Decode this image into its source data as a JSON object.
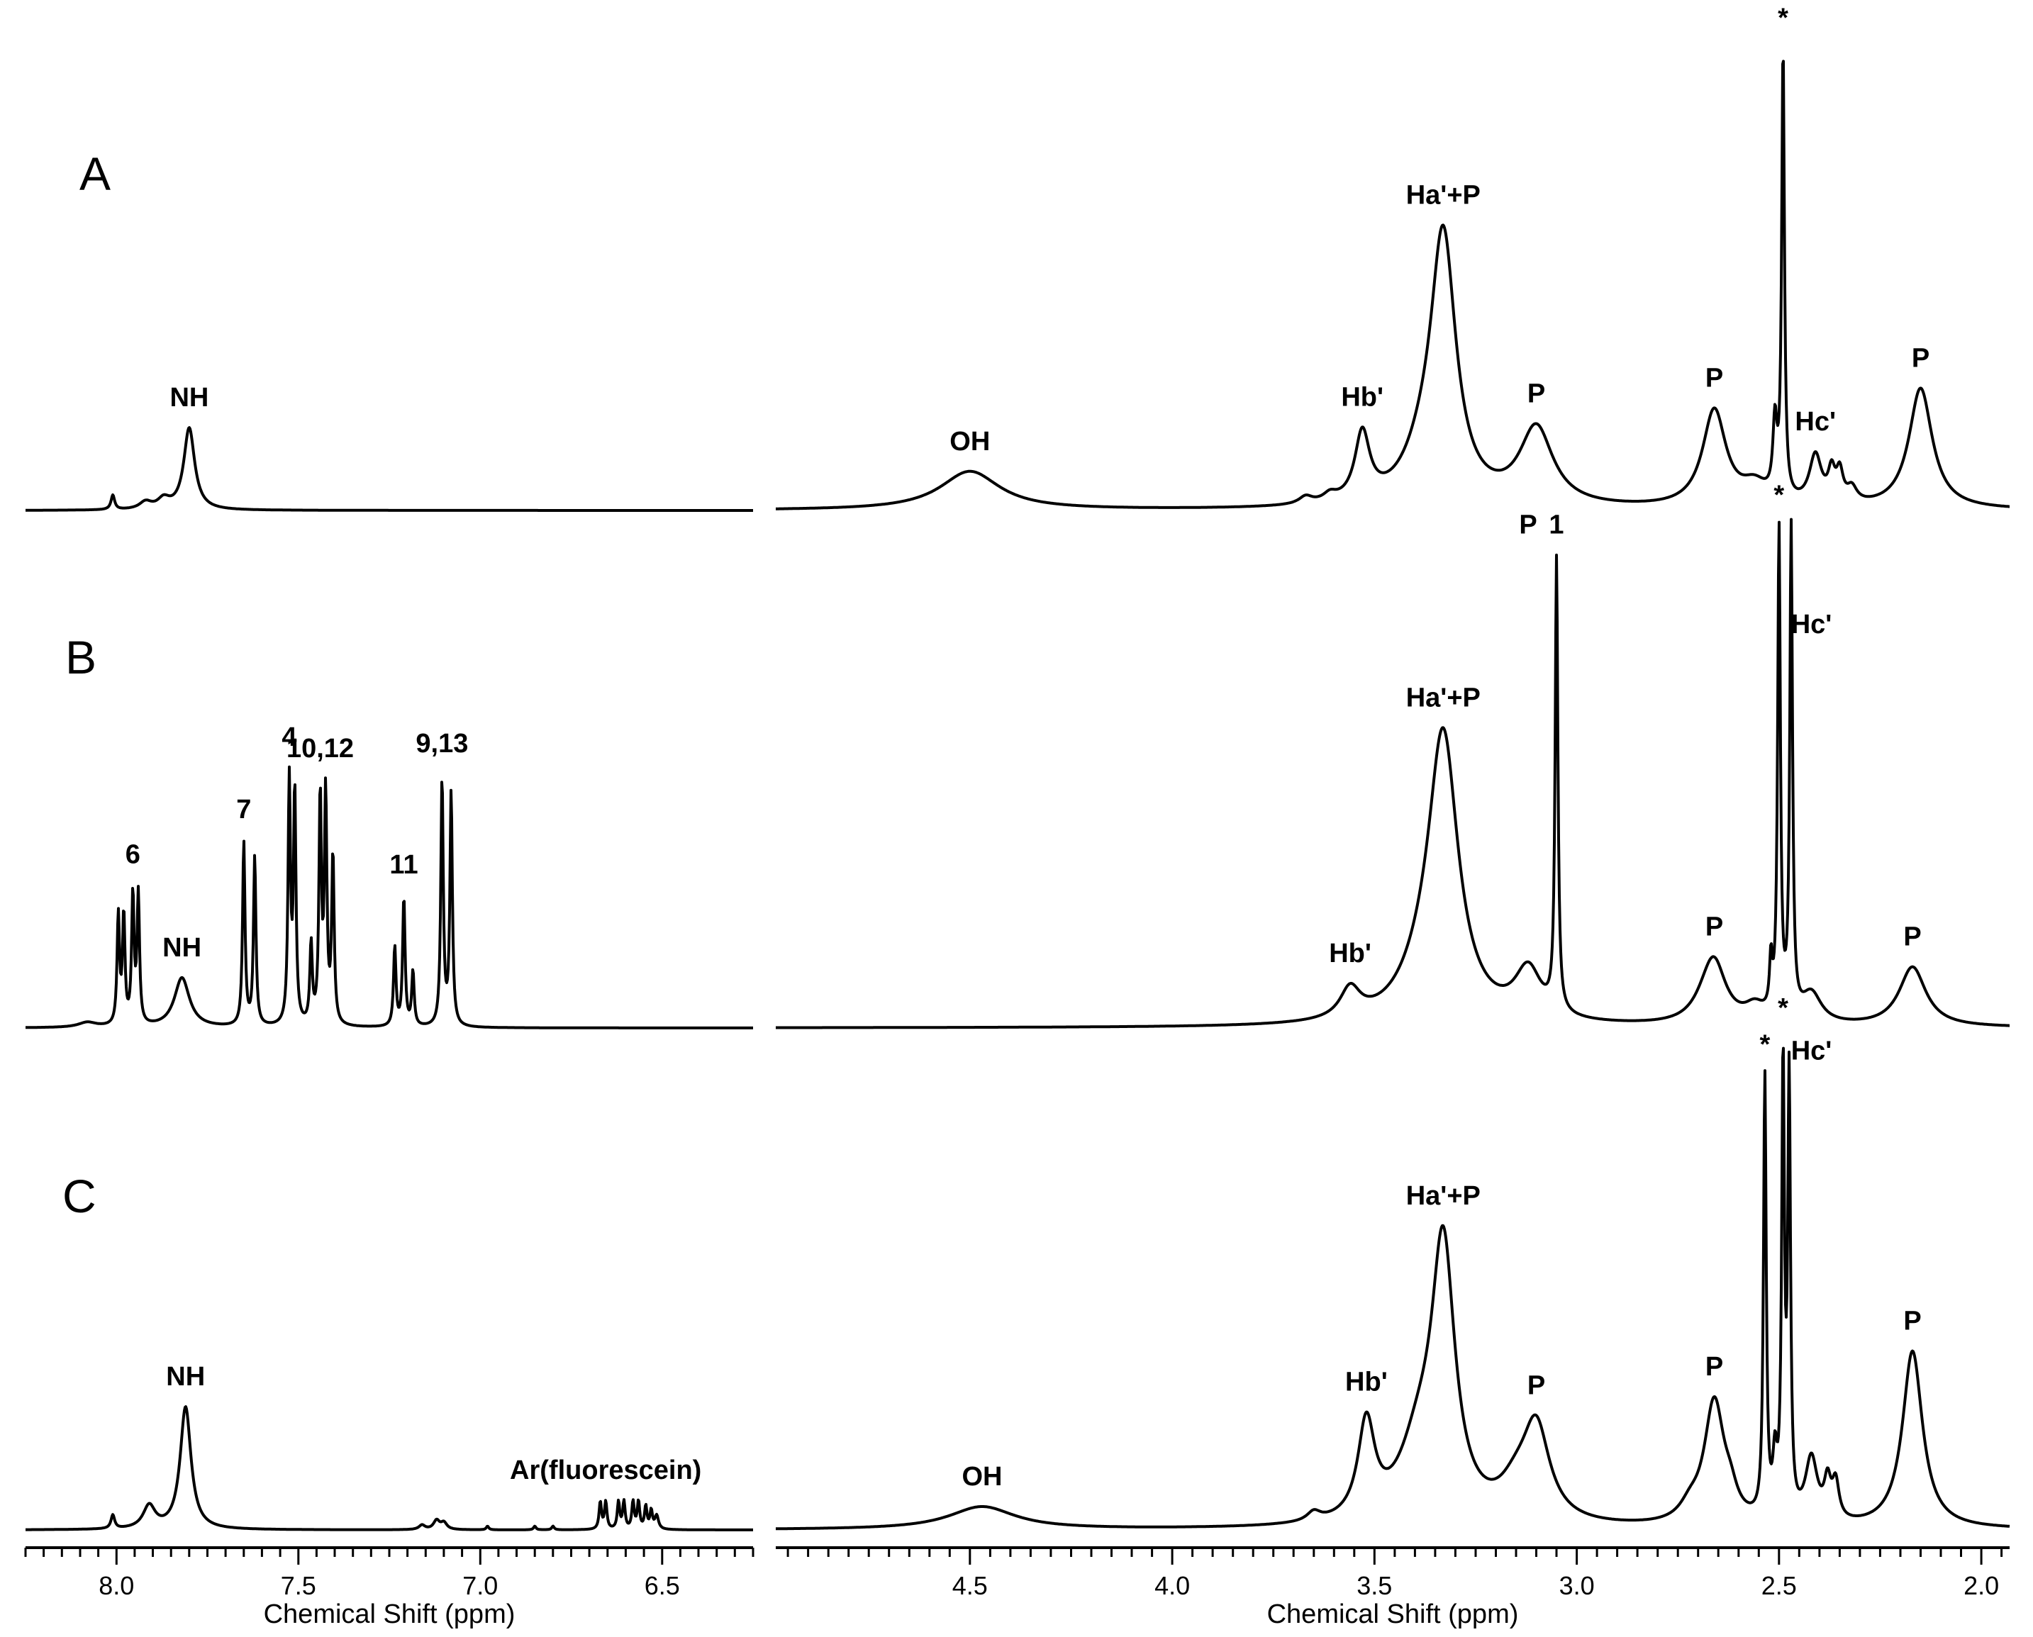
{
  "chart_data": {
    "type": "line",
    "title": "",
    "x_axes": [
      {
        "name": "left",
        "xlabel": "Chemical Shift (ppm)",
        "xlim": [
          8.25,
          6.25
        ],
        "reversed": true,
        "major_ticks": [
          8.0,
          7.5,
          7.0,
          6.5
        ],
        "tick_labels": [
          "8.0",
          "7.5",
          "7.0",
          "6.5"
        ],
        "minor_step": 0.05
      },
      {
        "name": "right",
        "xlabel": "Chemical Shift (ppm)",
        "xlim": [
          4.98,
          1.93
        ],
        "reversed": true,
        "major_ticks": [
          4.5,
          4.0,
          3.5,
          3.0,
          2.5,
          2.0
        ],
        "tick_labels": [
          "4.5",
          "4.0",
          "3.5",
          "3.0",
          "2.5",
          "2.0"
        ],
        "minor_step": 0.05
      }
    ],
    "y_axis": {
      "visible": false,
      "units": "relative intensity",
      "ylim": [
        0,
        1
      ]
    },
    "grid": false,
    "legend": "none",
    "spectra": [
      {
        "panel": "A",
        "peaks": [
          {
            "ppm": 8.01,
            "height": 0.03,
            "width": 0.006,
            "axis": "left"
          },
          {
            "ppm": 7.92,
            "height": 0.015,
            "width": 0.02,
            "axis": "left"
          },
          {
            "ppm": 7.87,
            "height": 0.02,
            "width": 0.02,
            "axis": "left"
          },
          {
            "ppm": 7.8,
            "height": 0.17,
            "width": 0.018,
            "axis": "left",
            "label": "NH"
          },
          {
            "ppm": 4.5,
            "height": 0.08,
            "width": 0.09,
            "axis": "right",
            "label": "OH"
          },
          {
            "ppm": 3.67,
            "height": 0.015,
            "width": 0.02,
            "axis": "right"
          },
          {
            "ppm": 3.61,
            "height": 0.015,
            "width": 0.02,
            "axis": "right"
          },
          {
            "ppm": 3.53,
            "height": 0.14,
            "width": 0.022,
            "axis": "right",
            "label": "Hb'"
          },
          {
            "ppm": 3.38,
            "height": 0.07,
            "width": 0.06,
            "axis": "right"
          },
          {
            "ppm": 3.33,
            "height": 0.54,
            "width": 0.038,
            "axis": "right",
            "label": "Ha'+P"
          },
          {
            "ppm": 3.1,
            "height": 0.16,
            "width": 0.05,
            "axis": "right",
            "label": "P"
          },
          {
            "ppm": 2.66,
            "height": 0.2,
            "width": 0.035,
            "axis": "right",
            "label": "P"
          },
          {
            "ppm": 2.56,
            "height": 0.04,
            "width": 0.04,
            "axis": "right"
          },
          {
            "ppm": 2.51,
            "height": 0.15,
            "width": 0.006,
            "axis": "right"
          },
          {
            "ppm": 2.49,
            "height": 0.93,
            "width": 0.004,
            "axis": "right",
            "label": "*"
          },
          {
            "ppm": 2.41,
            "height": 0.1,
            "width": 0.018,
            "axis": "right",
            "label": "Hc'"
          },
          {
            "ppm": 2.37,
            "height": 0.06,
            "width": 0.01,
            "axis": "right"
          },
          {
            "ppm": 2.35,
            "height": 0.06,
            "width": 0.01,
            "axis": "right"
          },
          {
            "ppm": 2.32,
            "height": 0.03,
            "width": 0.015,
            "axis": "right"
          },
          {
            "ppm": 2.15,
            "height": 0.25,
            "width": 0.035,
            "axis": "right",
            "label": "P"
          }
        ]
      },
      {
        "panel": "B",
        "peaks": [
          {
            "ppm": 8.08,
            "height": 0.01,
            "width": 0.03,
            "axis": "left"
          },
          {
            "ppm": 7.995,
            "height": 0.22,
            "width": 0.004,
            "axis": "left"
          },
          {
            "ppm": 7.98,
            "height": 0.22,
            "width": 0.004,
            "axis": "left"
          },
          {
            "ppm": 7.955,
            "height": 0.26,
            "width": 0.004,
            "axis": "left",
            "label": "6"
          },
          {
            "ppm": 7.94,
            "height": 0.26,
            "width": 0.004,
            "axis": "left"
          },
          {
            "ppm": 7.82,
            "height": 0.1,
            "width": 0.025,
            "axis": "left",
            "label": "NH"
          },
          {
            "ppm": 7.65,
            "height": 0.37,
            "width": 0.004,
            "axis": "left",
            "label": "7"
          },
          {
            "ppm": 7.62,
            "height": 0.34,
            "width": 0.004,
            "axis": "left"
          },
          {
            "ppm": 7.525,
            "height": 0.49,
            "width": 0.004,
            "axis": "left",
            "label": "4"
          },
          {
            "ppm": 7.51,
            "height": 0.47,
            "width": 0.004,
            "axis": "left"
          },
          {
            "ppm": 7.465,
            "height": 0.16,
            "width": 0.004,
            "axis": "left"
          },
          {
            "ppm": 7.44,
            "height": 0.46,
            "width": 0.004,
            "axis": "left",
            "label": "10,12"
          },
          {
            "ppm": 7.425,
            "height": 0.46,
            "width": 0.004,
            "axis": "left"
          },
          {
            "ppm": 7.405,
            "height": 0.34,
            "width": 0.004,
            "axis": "left"
          },
          {
            "ppm": 7.235,
            "height": 0.16,
            "width": 0.004,
            "axis": "left"
          },
          {
            "ppm": 7.21,
            "height": 0.26,
            "width": 0.004,
            "axis": "left",
            "label": "11"
          },
          {
            "ppm": 7.185,
            "height": 0.11,
            "width": 0.004,
            "axis": "left"
          },
          {
            "ppm": 7.105,
            "height": 0.5,
            "width": 0.004,
            "axis": "left",
            "label": "9,13"
          },
          {
            "ppm": 7.08,
            "height": 0.47,
            "width": 0.004,
            "axis": "left"
          },
          {
            "ppm": 3.56,
            "height": 0.06,
            "width": 0.03,
            "axis": "right",
            "label": "Hb'"
          },
          {
            "ppm": 3.38,
            "height": 0.06,
            "width": 0.07,
            "axis": "right"
          },
          {
            "ppm": 3.33,
            "height": 0.56,
            "width": 0.045,
            "axis": "right",
            "label": "Ha'+P"
          },
          {
            "ppm": 3.12,
            "height": 0.1,
            "width": 0.04,
            "axis": "right",
            "label": "P"
          },
          {
            "ppm": 3.05,
            "height": 0.91,
            "width": 0.004,
            "axis": "right",
            "label": "1"
          },
          {
            "ppm": 2.68,
            "height": 0.03,
            "width": 0.04,
            "axis": "right"
          },
          {
            "ppm": 2.66,
            "height": 0.11,
            "width": 0.035,
            "axis": "right",
            "label": "P"
          },
          {
            "ppm": 2.56,
            "height": 0.03,
            "width": 0.03,
            "axis": "right"
          },
          {
            "ppm": 2.52,
            "height": 0.1,
            "width": 0.004,
            "axis": "right"
          },
          {
            "ppm": 2.5,
            "height": 0.98,
            "width": 0.004,
            "axis": "right",
            "label": "*"
          },
          {
            "ppm": 2.47,
            "height": 0.98,
            "width": 0.004,
            "axis": "right"
          },
          {
            "ppm": 2.42,
            "height": 0.06,
            "width": 0.03,
            "axis": "right",
            "label": "Hc'"
          },
          {
            "ppm": 2.17,
            "height": 0.12,
            "width": 0.04,
            "axis": "right",
            "label": "P"
          }
        ]
      },
      {
        "panel": "C",
        "peaks": [
          {
            "ppm": 8.01,
            "height": 0.03,
            "width": 0.006,
            "axis": "left"
          },
          {
            "ppm": 7.91,
            "height": 0.05,
            "width": 0.02,
            "axis": "left"
          },
          {
            "ppm": 7.81,
            "height": 0.27,
            "width": 0.018,
            "axis": "left",
            "label": "NH"
          },
          {
            "ppm": 7.16,
            "height": 0.01,
            "width": 0.01,
            "axis": "left"
          },
          {
            "ppm": 7.12,
            "height": 0.02,
            "width": 0.01,
            "axis": "left"
          },
          {
            "ppm": 7.1,
            "height": 0.015,
            "width": 0.01,
            "axis": "left"
          },
          {
            "ppm": 6.98,
            "height": 0.008,
            "width": 0.004,
            "axis": "left"
          },
          {
            "ppm": 6.85,
            "height": 0.008,
            "width": 0.004,
            "axis": "left"
          },
          {
            "ppm": 6.8,
            "height": 0.008,
            "width": 0.004,
            "axis": "left"
          },
          {
            "ppm": 6.67,
            "height": 0.06,
            "width": 0.004,
            "axis": "left"
          },
          {
            "ppm": 6.655,
            "height": 0.06,
            "width": 0.004,
            "axis": "left",
            "label": "Ar(fluorescein)"
          },
          {
            "ppm": 6.62,
            "height": 0.06,
            "width": 0.004,
            "axis": "left"
          },
          {
            "ppm": 6.605,
            "height": 0.06,
            "width": 0.004,
            "axis": "left"
          },
          {
            "ppm": 6.58,
            "height": 0.06,
            "width": 0.004,
            "axis": "left"
          },
          {
            "ppm": 6.565,
            "height": 0.06,
            "width": 0.004,
            "axis": "left"
          },
          {
            "ppm": 6.545,
            "height": 0.05,
            "width": 0.004,
            "axis": "left"
          },
          {
            "ppm": 6.53,
            "height": 0.04,
            "width": 0.004,
            "axis": "left"
          },
          {
            "ppm": 6.515,
            "height": 0.03,
            "width": 0.006,
            "axis": "left"
          },
          {
            "ppm": 4.47,
            "height": 0.05,
            "width": 0.1,
            "axis": "right",
            "label": "OH"
          },
          {
            "ppm": 3.65,
            "height": 0.02,
            "width": 0.02,
            "axis": "right"
          },
          {
            "ppm": 3.52,
            "height": 0.21,
            "width": 0.025,
            "axis": "right",
            "label": "Hb'"
          },
          {
            "ppm": 3.39,
            "height": 0.15,
            "width": 0.06,
            "axis": "right"
          },
          {
            "ppm": 3.33,
            "height": 0.58,
            "width": 0.035,
            "axis": "right",
            "label": "Ha'+P"
          },
          {
            "ppm": 3.15,
            "height": 0.06,
            "width": 0.05,
            "axis": "right"
          },
          {
            "ppm": 3.1,
            "height": 0.2,
            "width": 0.04,
            "axis": "right",
            "label": "P"
          },
          {
            "ppm": 2.72,
            "height": 0.03,
            "width": 0.03,
            "axis": "right"
          },
          {
            "ppm": 2.66,
            "height": 0.27,
            "width": 0.03,
            "axis": "right",
            "label": "P"
          },
          {
            "ppm": 2.62,
            "height": 0.04,
            "width": 0.02,
            "axis": "right"
          },
          {
            "ppm": 2.535,
            "height": 0.97,
            "width": 0.004,
            "axis": "right",
            "label": "*"
          },
          {
            "ppm": 2.51,
            "height": 0.12,
            "width": 0.006,
            "axis": "right"
          },
          {
            "ppm": 2.49,
            "height": 0.99,
            "width": 0.004,
            "axis": "right",
            "label": "*"
          },
          {
            "ppm": 2.475,
            "height": 0.95,
            "width": 0.004,
            "axis": "right"
          },
          {
            "ppm": 2.42,
            "height": 0.14,
            "width": 0.018,
            "axis": "right",
            "label": "Hc'"
          },
          {
            "ppm": 2.38,
            "height": 0.08,
            "width": 0.01,
            "axis": "right"
          },
          {
            "ppm": 2.36,
            "height": 0.08,
            "width": 0.01,
            "axis": "right"
          },
          {
            "ppm": 2.17,
            "height": 0.39,
            "width": 0.03,
            "axis": "right",
            "label": "P"
          }
        ]
      }
    ]
  }
}
